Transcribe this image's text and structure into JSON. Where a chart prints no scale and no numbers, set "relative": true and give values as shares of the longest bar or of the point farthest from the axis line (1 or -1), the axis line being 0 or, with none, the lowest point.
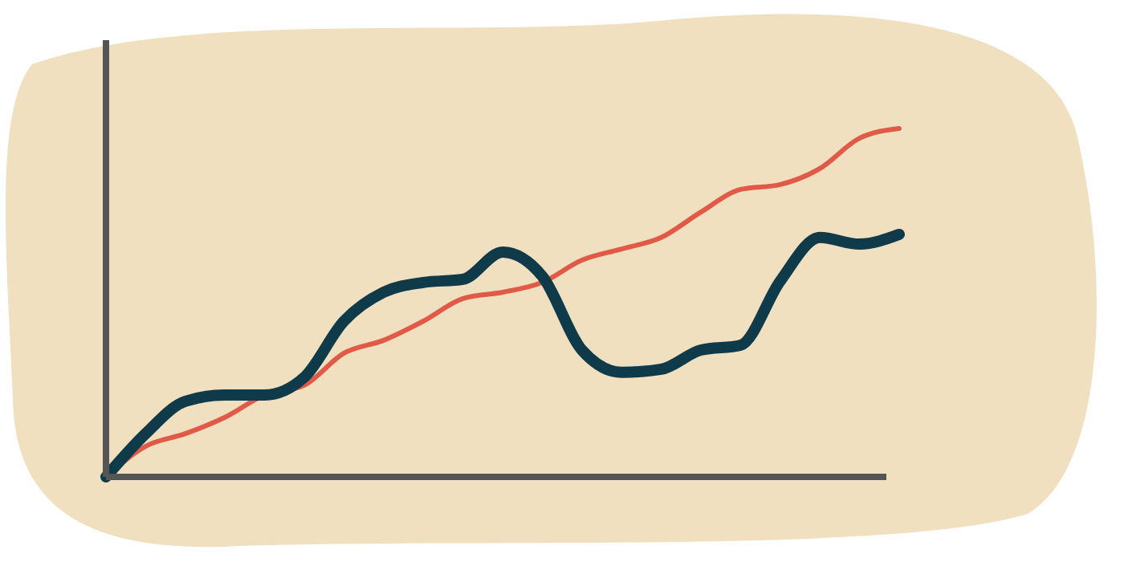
{
  "chart_data": {
    "type": "line",
    "relative": true,
    "categories": [
      null,
      null,
      null,
      null,
      null,
      null,
      null,
      null,
      null,
      null,
      null,
      null,
      null,
      null,
      null,
      null,
      null,
      null,
      null,
      null,
      null
    ],
    "series": [
      {
        "color": "#e05a47",
        "values": [
          0,
          0.088,
          0.124,
          0.171,
          0.235,
          0.263,
          0.355,
          0.392,
          0.447,
          0.512,
          0.53,
          0.558,
          0.622,
          0.654,
          0.687,
          0.76,
          0.825,
          0.839,
          0.885,
          0.972,
          1
        ]
      },
      {
        "color": "#0f3a4a",
        "values": [
          0,
          0.124,
          0.217,
          0.235,
          0.235,
          0.286,
          0.447,
          0.53,
          0.558,
          0.567,
          0.645,
          0.576,
          0.364,
          0.3,
          0.309,
          0.364,
          0.378,
          0.562,
          0.687,
          0.668,
          0.696
        ]
      }
    ]
  }
}
